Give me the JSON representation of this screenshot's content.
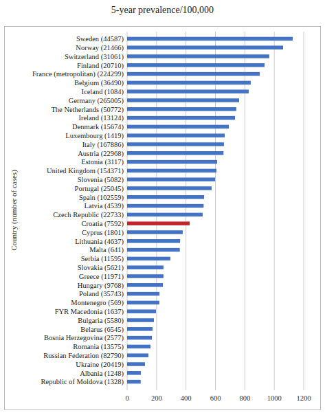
{
  "chart_data": {
    "type": "bar",
    "orientation": "horizontal",
    "title": "5-year prevalence/100,000",
    "ylabel": "Country (number of cases)",
    "categories": [
      "Sweden (44587)",
      "Norway (21466)",
      "Switzerland (31061)",
      "Finland (20710)",
      "France (metropolitan) (224299)",
      "Belgium (36490)",
      "Iceland (1084)",
      "Germany (265005)",
      "The Netherlands (50772)",
      "Ireland (13124)",
      "Denmark (15674)",
      "Luxembourg (1419)",
      "Italy (167886)",
      "Austria (22968)",
      "Estonia (3117)",
      "United Kingdom (154371)",
      "Slovenia (5082)",
      "Portugal (25045)",
      "Spain (102559)",
      "Latvia (4539)",
      "Czech Republic (22733)",
      "Croatia (7592)",
      "Cyprus (1801)",
      "Lithuania (4637)",
      "Malta (641)",
      "Serbia (11595)",
      "Slovakia (5621)",
      "Greece (11971)",
      "Hungary (9768)",
      "Poland (35743)",
      "Montenegro (569)",
      "FYR Macedonia (1637)",
      "Bulgaria (5580)",
      "Belarus (6545)",
      "Bosnia Herzegovina (2577)",
      "Romania (13575)",
      "Russian Federation (82790)",
      "Ukraine (20419)",
      "Albania (1248)",
      "Republic of Moldova (1328)"
    ],
    "values": [
      1125,
      1060,
      966,
      934,
      901,
      840,
      826,
      761,
      742,
      733,
      691,
      663,
      658,
      655,
      612,
      607,
      598,
      574,
      523,
      520,
      513,
      425,
      378,
      360,
      358,
      294,
      247,
      247,
      243,
      220,
      219,
      196,
      182,
      173,
      168,
      159,
      145,
      121,
      93,
      92
    ],
    "colors": [
      "#4472c4",
      "#4472c4",
      "#4472c4",
      "#4472c4",
      "#4472c4",
      "#4472c4",
      "#4472c4",
      "#4472c4",
      "#4472c4",
      "#4472c4",
      "#4472c4",
      "#4472c4",
      "#4472c4",
      "#4472c4",
      "#4472c4",
      "#4472c4",
      "#4472c4",
      "#4472c4",
      "#4472c4",
      "#4472c4",
      "#4472c4",
      "#c0272d",
      "#4472c4",
      "#4472c4",
      "#4472c4",
      "#4472c4",
      "#4472c4",
      "#4472c4",
      "#4472c4",
      "#4472c4",
      "#4472c4",
      "#4472c4",
      "#4472c4",
      "#4472c4",
      "#4472c4",
      "#4472c4",
      "#4472c4",
      "#4472c4",
      "#4472c4",
      "#4472c4"
    ],
    "xlim": [
      0,
      1200
    ],
    "xticks": [
      0,
      200,
      400,
      600,
      800,
      1000,
      1200
    ],
    "grid": true
  }
}
